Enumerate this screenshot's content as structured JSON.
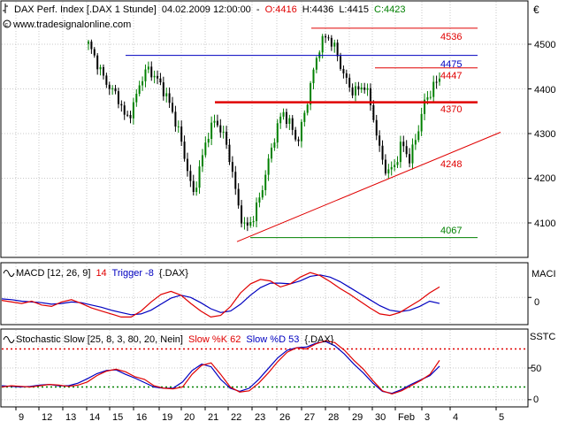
{
  "header": {
    "title_prefix": "DAX Perf. Index [.DAX  1 Stunde]",
    "datetime": "04.02.2009 12:00:00",
    "dash": "-",
    "open": "O:4416",
    "high": "H:4436",
    "low": "L:4415",
    "close": "C:4423",
    "source": "www.tradesignalonline.com",
    "currency": "€"
  },
  "colors": {
    "up": "#008000",
    "down": "#000000",
    "red": "#e00000",
    "blue": "#0000c0",
    "grid": "#c8c8c8"
  },
  "price_panel": {
    "y_ticks": [
      "4500",
      "4400",
      "4300",
      "4200",
      "4100"
    ],
    "levels": [
      {
        "label": "4536",
        "value": 4536,
        "color": "#e00000"
      },
      {
        "label": "4475",
        "value": 4475,
        "color": "#0000c0"
      },
      {
        "label": "4447",
        "value": 4447,
        "color": "#e00000"
      },
      {
        "label": "4370",
        "value": 4370,
        "color": "#e00000"
      },
      {
        "label": "4248",
        "value": 4248,
        "color": "#e00000"
      },
      {
        "label": "4067",
        "value": 4067,
        "color": "#008000"
      }
    ]
  },
  "macd_panel": {
    "label_main": "MACD [12, 26, 9]",
    "label_value": "14",
    "label_trigger": "Trigger -8",
    "label_sym": "{.DAX}",
    "right_label": "MACI",
    "zero_label": "0"
  },
  "stoch_panel": {
    "label_main": "Stochastic Slow [25, 8, 3, 80, 20, Nein]",
    "label_k": "Slow %K 62",
    "label_d": "Slow %D 53",
    "label_sym": "{.DAX}",
    "right_label": "SSTC",
    "y_ticks": [
      "50",
      "0"
    ],
    "upper": 80,
    "lower": 20
  },
  "x_axis": {
    "ticks": [
      "9",
      "12",
      "13",
      "14",
      "15",
      "16",
      "19",
      "20",
      "21",
      "22",
      "23",
      "26",
      "27",
      "28",
      "29",
      "30",
      "Feb",
      "3",
      "4",
      "5"
    ]
  },
  "chart_data": {
    "type": "candlestick",
    "title": "DAX Perf. Index [.DAX  1 Stunde]",
    "ylim": [
      4040,
      4560
    ],
    "price_axis_ticks": [
      4100,
      4200,
      4300,
      4400,
      4500
    ],
    "horizontal_levels": [
      4536,
      4475,
      4447,
      4370,
      4248,
      4067
    ],
    "trendline": {
      "from": [
        4067,
        "23 Jan"
      ],
      "to": ">4300, after 4 Feb"
    },
    "last_bar": {
      "open": 4416,
      "high": 4436,
      "low": 4415,
      "close": 4423
    },
    "close_path": [
      4500,
      4465,
      4425,
      4400,
      4380,
      4330,
      4360,
      4420,
      4445,
      4425,
      4400,
      4360,
      4310,
      4240,
      4160,
      4230,
      4300,
      4330,
      4300,
      4240,
      4140,
      4085,
      4110,
      4160,
      4230,
      4300,
      4350,
      4320,
      4280,
      4350,
      4430,
      4500,
      4520,
      4490,
      4440,
      4400,
      4395,
      4410,
      4350,
      4260,
      4210,
      4230,
      4280,
      4240,
      4300,
      4370,
      4400,
      4423
    ],
    "macd_ylim": [
      -35,
      45
    ],
    "macd": [
      -4,
      -6,
      -8,
      -5,
      -10,
      -12,
      -6,
      -3,
      -8,
      -14,
      -18,
      -22,
      -26,
      -26,
      -18,
      -6,
      4,
      8,
      3,
      -8,
      -18,
      -26,
      -24,
      -12,
      6,
      18,
      24,
      22,
      14,
      18,
      27,
      33,
      29,
      21,
      12,
      4,
      -5,
      -14,
      -22,
      -24,
      -20,
      -12,
      -4,
      6,
      14
    ],
    "trigger": [
      -2,
      -3,
      -5,
      -6,
      -7,
      -9,
      -8,
      -6,
      -7,
      -10,
      -13,
      -17,
      -20,
      -23,
      -22,
      -17,
      -9,
      -1,
      3,
      0,
      -7,
      -15,
      -20,
      -18,
      -9,
      3,
      13,
      19,
      19,
      18,
      22,
      28,
      30,
      27,
      21,
      13,
      5,
      -3,
      -11,
      -17,
      -19,
      -17,
      -12,
      -5,
      -8
    ],
    "stoch_ylim": [
      -10,
      110
    ],
    "slow_k": [
      20,
      22,
      21,
      20,
      22,
      24,
      23,
      21,
      23,
      28,
      38,
      45,
      48,
      44,
      36,
      32,
      22,
      18,
      17,
      20,
      40,
      54,
      58,
      40,
      20,
      12,
      14,
      26,
      42,
      60,
      75,
      82,
      80,
      88,
      93,
      90,
      78,
      62,
      48,
      30,
      14,
      9,
      14,
      22,
      30,
      40,
      62
    ],
    "slow_d": [
      22,
      21,
      20,
      21,
      23,
      24,
      22,
      22,
      26,
      33,
      41,
      46,
      47,
      40,
      34,
      27,
      20,
      18,
      18,
      28,
      46,
      56,
      52,
      32,
      18,
      13,
      18,
      32,
      49,
      66,
      78,
      82,
      83,
      89,
      92,
      85,
      72,
      56,
      42,
      26,
      13,
      10,
      16,
      24,
      31,
      38,
      53
    ]
  }
}
